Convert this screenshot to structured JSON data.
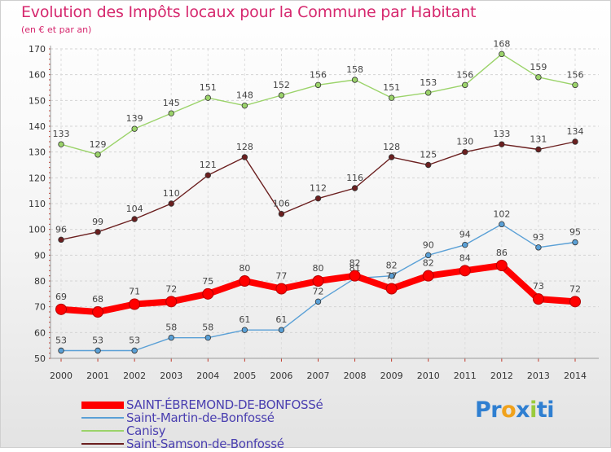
{
  "header": {
    "title": "Evolution des Impôts locaux pour la Commune par Habitant",
    "subtitle": "(en € et par an)"
  },
  "brand": {
    "parts": [
      "Pr",
      "o",
      "x",
      "i",
      "ti"
    ],
    "colors": [
      "#2f7fd1",
      "#f0a21c",
      "#2f7fd1",
      "#9acb3c",
      "#2f7fd1"
    ]
  },
  "chart_data": {
    "type": "line",
    "title": "Evolution des Impôts locaux pour la Commune par Habitant",
    "subtitle": "(en € et par an)",
    "xlabel": "",
    "ylabel": "",
    "x": [
      "2000",
      "2001",
      "2002",
      "2003",
      "2004",
      "2005",
      "2006",
      "2007",
      "2008",
      "2009",
      "2010",
      "2011",
      "2012",
      "2013",
      "2014"
    ],
    "ylim": [
      50,
      170
    ],
    "yticks": [
      50,
      60,
      70,
      80,
      90,
      100,
      110,
      120,
      130,
      140,
      150,
      160,
      170
    ],
    "grid": true,
    "legend_position": "bottom-left",
    "series": [
      {
        "name": "SAINT-ÉBREMOND-DE-BONFOSSé",
        "color": "#ff0000",
        "values": [
          69,
          68,
          71,
          72,
          75,
          80,
          77,
          80,
          82,
          77,
          82,
          84,
          86,
          73,
          72
        ]
      },
      {
        "name": "Saint-Martin-de-Bonfossé",
        "color": "#5aa0d6",
        "values": [
          53,
          53,
          53,
          58,
          58,
          61,
          61,
          72,
          81,
          82,
          90,
          94,
          102,
          93,
          95
        ]
      },
      {
        "name": "Canisy",
        "color": "#9bd36a",
        "values": [
          133,
          129,
          139,
          145,
          151,
          148,
          152,
          156,
          158,
          151,
          153,
          156,
          168,
          159,
          156
        ]
      },
      {
        "name": "Saint-Samson-de-Bonfossé",
        "color": "#6b1f1f",
        "values": [
          96,
          99,
          104,
          110,
          121,
          128,
          106,
          112,
          116,
          128,
          125,
          130,
          133,
          131,
          134
        ]
      }
    ]
  }
}
